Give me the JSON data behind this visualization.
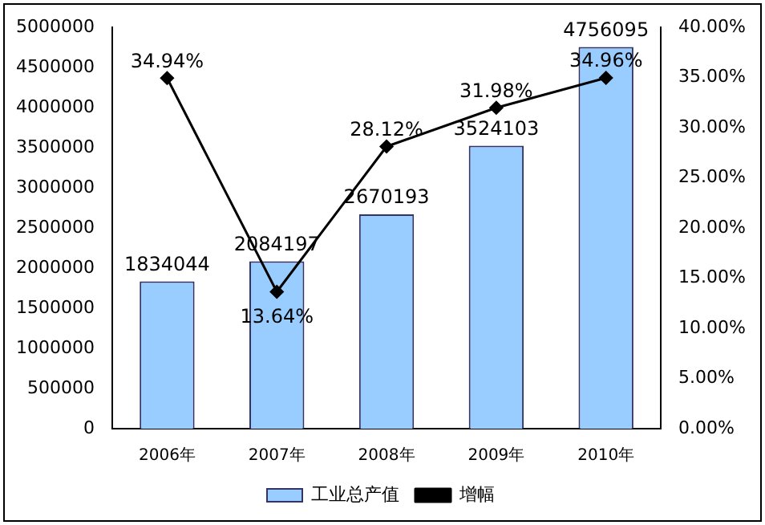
{
  "chart_data": {
    "type": "bar",
    "categories": [
      "2006年",
      "2007年",
      "2008年",
      "2009年",
      "2010年"
    ],
    "series": [
      {
        "name": "工业总产值",
        "color": "#99ccff",
        "values": [
          1834044,
          2084197,
          2670193,
          3524103,
          4756095
        ],
        "value_labels": [
          "1834044",
          "2084197",
          "2670193",
          "3524103",
          "4756095"
        ]
      },
      {
        "name": "增幅",
        "type": "line",
        "axis": "y2",
        "color": "#000000",
        "values": [
          34.94,
          13.64,
          28.12,
          31.98,
          34.96
        ],
        "value_labels": [
          "34.94%",
          "13.64%",
          "28.12%",
          "31.98%",
          "34.96%"
        ]
      }
    ],
    "ylim": [
      0,
      5000000
    ],
    "yticks": [
      0,
      500000,
      1000000,
      1500000,
      2000000,
      2500000,
      3000000,
      3500000,
      4000000,
      4500000,
      5000000
    ],
    "y2lim": [
      0,
      40
    ],
    "y2ticks": [
      {
        "value": 0,
        "label": "0.00%"
      },
      {
        "value": 5,
        "label": "5.00%"
      },
      {
        "value": 10,
        "label": "10.00%"
      },
      {
        "value": 15,
        "label": "15.00%"
      },
      {
        "value": 20,
        "label": "20.00%"
      },
      {
        "value": 25,
        "label": "25.00%"
      },
      {
        "value": 30,
        "label": "30.00%"
      },
      {
        "value": 35,
        "label": "35.00%"
      },
      {
        "value": 40,
        "label": "40.00%"
      }
    ],
    "grid": false,
    "legend": "bottom",
    "marker": "diamond",
    "line_style": "solid"
  }
}
